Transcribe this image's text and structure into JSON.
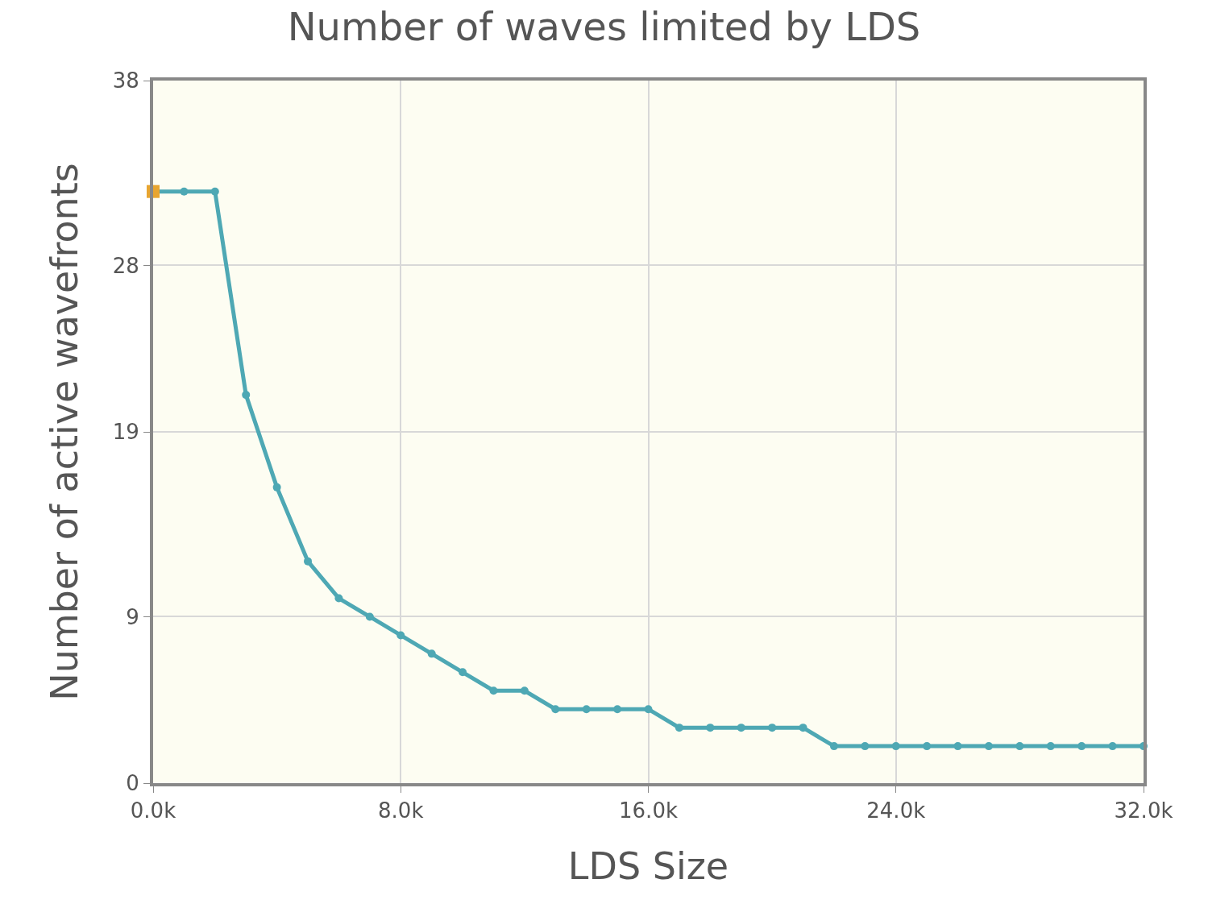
{
  "chart_data": {
    "type": "line",
    "title": "Number of waves limited by LDS",
    "xlabel": "LDS Size",
    "ylabel": "Number of active wavefronts",
    "x": [
      0,
      1000,
      2000,
      3000,
      4000,
      5000,
      6000,
      7000,
      8000,
      9000,
      10000,
      11000,
      12000,
      13000,
      14000,
      15000,
      16000,
      17000,
      18000,
      19000,
      20000,
      21000,
      22000,
      23000,
      24000,
      25000,
      26000,
      27000,
      28000,
      29000,
      30000,
      31000,
      32000
    ],
    "series": [
      {
        "color": "#4ea8b4",
        "values": [
          32,
          32,
          32,
          21,
          16,
          12,
          10,
          9,
          8,
          7,
          6,
          5,
          5,
          4,
          4,
          4,
          4,
          3,
          3,
          3,
          3,
          3,
          2,
          2,
          2,
          2,
          2,
          2,
          2,
          2,
          2,
          2,
          2
        ]
      },
      {
        "type": "scatter",
        "color": "#e8a530",
        "marker": "square",
        "x": [
          0
        ],
        "values": [
          32
        ]
      }
    ],
    "xlim": [
      0,
      32000
    ],
    "xticks": [
      {
        "value": 0,
        "label": "0.0k"
      },
      {
        "value": 8000,
        "label": "8.0k"
      },
      {
        "value": 16000,
        "label": "16.0k"
      },
      {
        "value": 24000,
        "label": "24.0k"
      },
      {
        "value": 32000,
        "label": "32.0k"
      }
    ],
    "ylim": [
      0,
      38
    ],
    "yticks": [
      0,
      9,
      19,
      28,
      38
    ],
    "grid": true,
    "marker": "circle"
  }
}
